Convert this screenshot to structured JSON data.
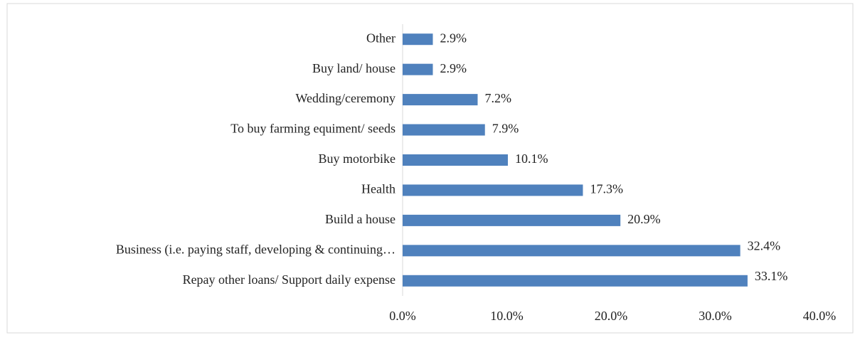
{
  "chart_data": {
    "type": "bar",
    "orientation": "horizontal",
    "categories": [
      "Other",
      "Buy land/ house",
      "Wedding/ceremony",
      "To buy farming equiment/ seeds",
      "Buy motorbike",
      "Health",
      "Build a house",
      "Business (i.e. paying staff, developing & continuing…",
      "Repay other loans/ Support daily expense"
    ],
    "values": [
      2.9,
      2.9,
      7.2,
      7.9,
      10.1,
      17.3,
      20.9,
      32.4,
      33.1
    ],
    "value_labels": [
      "2.9%",
      "2.9%",
      "7.2%",
      "7.9%",
      "10.1%",
      "17.3%",
      "20.9%",
      "32.4%",
      "33.1%"
    ],
    "color": "#4f81bd",
    "xlim": [
      0,
      40
    ],
    "xticks": [
      {
        "value": 0,
        "label": "0.0%"
      },
      {
        "value": 10,
        "label": "10.0%"
      },
      {
        "value": 20,
        "label": "20.0%"
      },
      {
        "value": 30,
        "label": "30.0%"
      },
      {
        "value": 40,
        "label": "40.0%"
      }
    ],
    "grid": false
  }
}
